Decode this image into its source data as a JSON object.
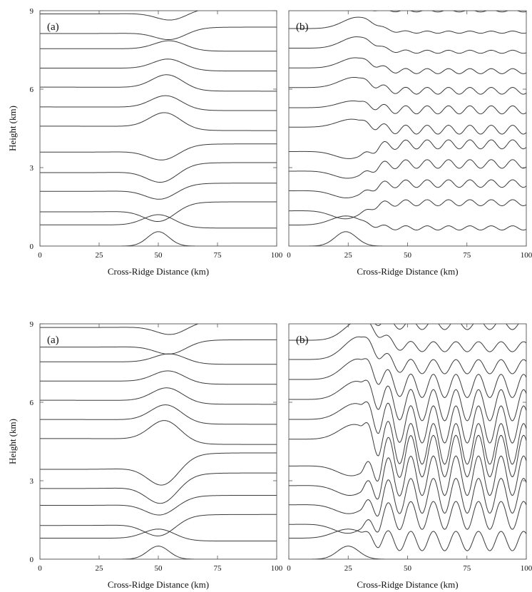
{
  "chart_data": [
    {
      "type": "line",
      "panel_label": "(a)",
      "xlabel": "Cross-Ridge Distance (km)",
      "ylabel": "Height (km)",
      "xlim": [
        0,
        100
      ],
      "ylim": [
        0,
        9
      ],
      "xticks": [
        0,
        25,
        50,
        75,
        100
      ],
      "yticks": [
        0,
        3,
        6,
        9
      ],
      "mountain_center_km": 50,
      "mountain_peak_km": 0.55,
      "levels_km": [
        0.0,
        0.75,
        1.5,
        2.25,
        3.0,
        3.75,
        4.5,
        5.25,
        6.0,
        6.75,
        7.5,
        8.25,
        9.0
      ],
      "level_displacement_km": [
        0.55,
        0.45,
        -0.55,
        -0.45,
        -0.55,
        -0.45,
        0.6,
        0.5,
        0.55,
        0.4,
        0.35,
        -0.35,
        -0.35
      ],
      "downstream_wave_amplitude_km": 0.0,
      "downstream_wavelength_km": 0
    },
    {
      "type": "line",
      "panel_label": "(b)",
      "xlabel": "Cross-Ridge Distance (km)",
      "ylabel": "",
      "xlim": [
        0,
        100
      ],
      "ylim": [
        0,
        9
      ],
      "xticks": [
        0,
        25,
        50,
        75,
        100
      ],
      "yticks": [],
      "mountain_center_km": 24,
      "mountain_peak_km": 0.55,
      "levels_km": [
        0.0,
        0.75,
        1.5,
        2.25,
        3.0,
        3.75,
        4.5,
        5.25,
        6.0,
        6.75,
        7.5,
        8.25,
        9.0
      ],
      "level_displacement_km": [
        0.55,
        0.4,
        -0.45,
        -0.4,
        -0.4,
        -0.4,
        0.35,
        0.3,
        0.45,
        0.45,
        0.5,
        0.5,
        0.05
      ],
      "downstream_wave_amplitude_km": 0.12,
      "downstream_wavelength_km": 9
    },
    {
      "type": "line",
      "panel_label": "(a)",
      "xlabel": "Cross-Ridge Distance (km)",
      "ylabel": "Height (km)",
      "xlim": [
        0,
        100
      ],
      "ylim": [
        0,
        9
      ],
      "xticks": [
        0,
        25,
        50,
        75,
        100
      ],
      "yticks": [
        0,
        3,
        6,
        9
      ],
      "mountain_center_km": 50,
      "mountain_peak_km": 0.5,
      "levels_km": [
        0.0,
        0.75,
        1.5,
        2.25,
        3.0,
        3.75,
        4.5,
        5.25,
        6.0,
        6.75,
        7.5,
        8.25,
        9.0
      ],
      "level_displacement_km": [
        0.5,
        0.4,
        -0.6,
        -0.55,
        -0.85,
        -0.9,
        0.8,
        0.65,
        0.55,
        0.45,
        0.35,
        -0.4,
        -0.4
      ],
      "downstream_wave_amplitude_km": 0.0,
      "downstream_wavelength_km": 0
    },
    {
      "type": "line",
      "panel_label": "(b)",
      "xlabel": "Cross-Ridge Distance (km)",
      "ylabel": "",
      "xlim": [
        0,
        100
      ],
      "ylim": [
        0,
        9
      ],
      "xticks": [
        0,
        25,
        50,
        75,
        100
      ],
      "yticks": [],
      "mountain_center_km": 25,
      "mountain_peak_km": 0.5,
      "levels_km": [
        0.0,
        0.75,
        1.5,
        2.25,
        3.0,
        3.75,
        4.5,
        5.25,
        6.0,
        6.75,
        7.5,
        8.25,
        9.0
      ],
      "level_displacement_km": [
        0.5,
        0.4,
        -0.5,
        -0.5,
        -0.55,
        -0.55,
        0.65,
        0.7,
        0.8,
        0.9,
        1.0,
        0.9,
        0.2
      ],
      "downstream_wave_amplitude_km": 0.55,
      "downstream_wavelength_km": 9.5
    }
  ]
}
